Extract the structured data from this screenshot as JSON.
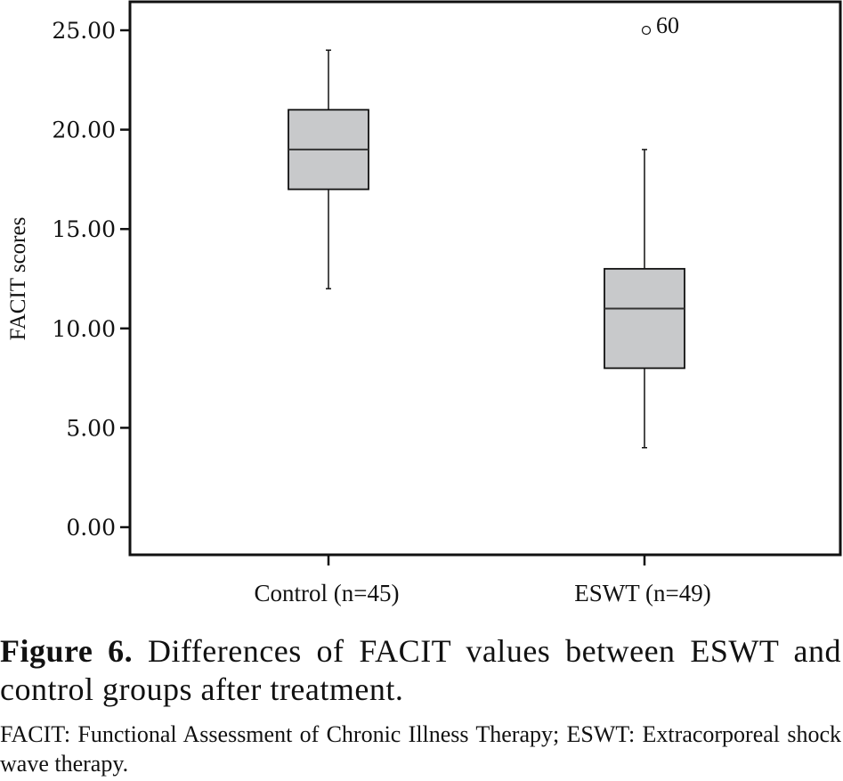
{
  "chart_data": {
    "type": "boxplot",
    "title": "",
    "xlabel": "",
    "ylabel": "FACIT scores",
    "ylim": [
      0,
      25
    ],
    "yticks": [
      0,
      5,
      10,
      15,
      20,
      25
    ],
    "ytick_labels": [
      "0.00",
      "5.00",
      "10.00",
      "15.00",
      "20.00",
      "25.00"
    ],
    "grid": false,
    "categories": [
      "Control (n=45)",
      "ESWT (n=49)"
    ],
    "series": [
      {
        "name": "Control (n=45)",
        "whisker_low": 12,
        "q1": 17,
        "median": 19,
        "q3": 21,
        "whisker_high": 24,
        "outliers": []
      },
      {
        "name": "ESWT (n=49)",
        "whisker_low": 4,
        "q1": 8,
        "median": 11,
        "q3": 13,
        "whisker_high": 19,
        "outliers": [
          {
            "value": 25,
            "label": "60"
          }
        ]
      }
    ],
    "colors": {
      "box_fill": "#c8c9cb",
      "box_stroke": "#111111",
      "median": "#333333",
      "axis": "#111111"
    }
  },
  "caption": {
    "figure_label": "Figure 6.",
    "figure_text": "Differences of FACIT values between ESWT and control groups after treatment.",
    "notes": "FACIT: Functional Assessment of Chronic Illness Therapy; ESWT: Extracorporeal shock wave therapy."
  }
}
